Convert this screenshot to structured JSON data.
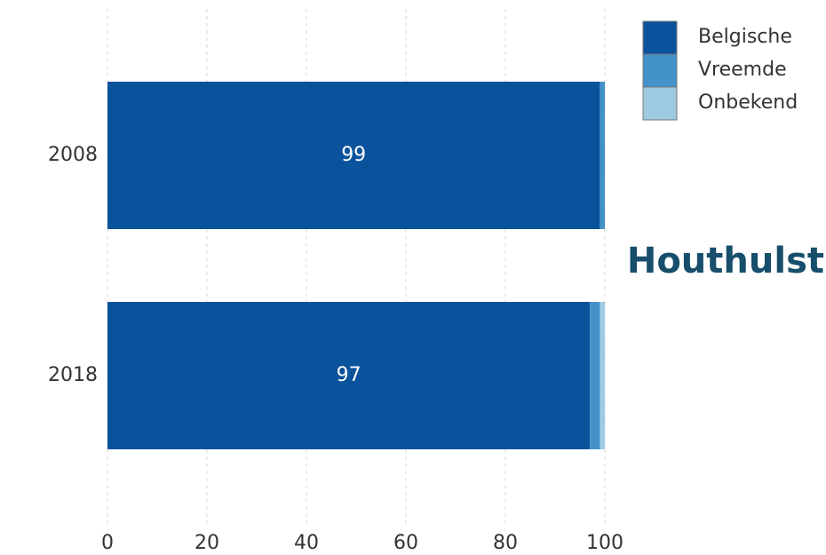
{
  "chart_data": {
    "type": "stacked-barh",
    "title": "Houthulst",
    "categories": [
      "2008",
      "2018"
    ],
    "series": [
      {
        "name": "Belgische",
        "color": "#0b529c",
        "values": [
          99,
          97
        ],
        "show_labels": true
      },
      {
        "name": "Vreemde",
        "color": "#4392c8",
        "values": [
          1,
          2
        ]
      },
      {
        "name": "Onbekend",
        "color": "#9ecae1",
        "values": [
          0,
          1
        ]
      }
    ],
    "xlim": [
      0,
      100
    ],
    "xticks": [
      0,
      20,
      40,
      60,
      80,
      100
    ],
    "grid": true,
    "legend": "top-right"
  }
}
